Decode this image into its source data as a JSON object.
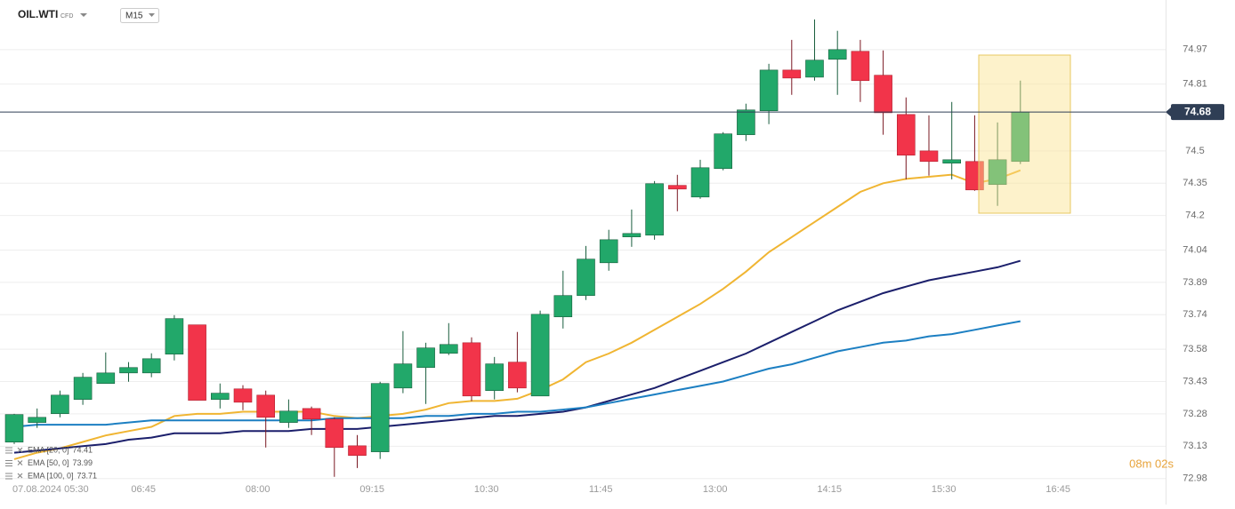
{
  "header": {
    "symbol": "OIL.WTI",
    "instrument_type": "CFD",
    "interval": "M15"
  },
  "countdown": "08m 02s",
  "chart_data": {
    "type": "candlestick",
    "up_color": "#22a86a",
    "down_color": "#f2344a",
    "grid": true,
    "categories": [
      "07.08.2024 05:30",
      null,
      null,
      null,
      null,
      null,
      "06:45",
      null,
      null,
      null,
      null,
      "08:00",
      null,
      null,
      null,
      null,
      "09:15",
      null,
      null,
      null,
      null,
      "10:30",
      null,
      null,
      null,
      null,
      "11:45",
      null,
      null,
      null,
      null,
      "13:00",
      null,
      null,
      null,
      null,
      "14:15",
      null,
      null,
      null,
      null,
      "15:30",
      null,
      null,
      null,
      null,
      "16:45"
    ],
    "open": [
      73.149,
      73.24,
      73.281,
      73.347,
      73.421,
      73.47,
      73.47,
      73.557,
      73.693,
      73.347,
      73.396,
      73.367,
      73.24,
      73.305,
      73.256,
      73.132,
      73.104,
      73.4,
      73.495,
      73.561,
      73.61,
      73.388,
      73.52,
      73.363,
      73.73,
      73.829,
      73.981,
      74.101,
      74.109,
      74.34,
      74.286,
      74.418,
      74.575,
      74.686,
      74.875,
      74.842,
      74.925,
      74.962,
      74.851,
      74.669,
      74.5,
      74.443,
      74.451,
      74.344,
      74.451,
      null,
      null
    ],
    "high": [
      73.28,
      73.305,
      73.388,
      73.47,
      73.565,
      73.52,
      73.561,
      73.738,
      73.693,
      73.421,
      73.413,
      73.388,
      73.347,
      73.314,
      73.264,
      73.182,
      73.429,
      73.664,
      73.61,
      73.701,
      73.635,
      73.544,
      73.66,
      73.759,
      73.944,
      74.059,
      74.134,
      74.228,
      74.36,
      74.389,
      74.459,
      74.587,
      74.719,
      74.904,
      75.015,
      75.11,
      75.057,
      75.015,
      74.966,
      74.748,
      74.665,
      74.727,
      74.665,
      74.632,
      74.826,
      null,
      null
    ],
    "low": [
      73.14,
      73.215,
      73.264,
      73.322,
      73.421,
      73.429,
      73.45,
      73.528,
      73.343,
      73.305,
      73.297,
      73.124,
      73.215,
      73.182,
      72.988,
      73.029,
      73.071,
      73.376,
      73.326,
      73.553,
      73.339,
      73.347,
      73.38,
      73.363,
      73.676,
      73.808,
      73.944,
      74.055,
      74.088,
      74.22,
      74.278,
      74.41,
      74.546,
      74.624,
      74.76,
      74.826,
      74.76,
      74.727,
      74.575,
      74.368,
      74.385,
      74.368,
      74.315,
      74.245,
      74.439,
      null,
      null
    ],
    "close": [
      73.277,
      73.264,
      73.367,
      73.45,
      73.47,
      73.495,
      73.536,
      73.722,
      73.343,
      73.376,
      73.334,
      73.264,
      73.293,
      73.256,
      73.124,
      73.087,
      73.421,
      73.512,
      73.586,
      73.602,
      73.363,
      73.512,
      73.4,
      73.742,
      73.829,
      73.998,
      74.088,
      74.117,
      74.348,
      74.323,
      74.422,
      74.579,
      74.69,
      74.875,
      74.838,
      74.921,
      74.97,
      74.826,
      74.677,
      74.48,
      74.451,
      74.459,
      74.319,
      74.459,
      74.68,
      null,
      null
    ],
    "series": [
      {
        "name": "EMA [20, 0]",
        "color": "#f0b532",
        "values": [
          73.07,
          73.1,
          73.12,
          73.15,
          73.18,
          73.2,
          73.22,
          73.27,
          73.28,
          73.28,
          73.29,
          73.29,
          73.29,
          73.29,
          73.27,
          73.26,
          73.27,
          73.28,
          73.3,
          73.33,
          73.34,
          73.34,
          73.35,
          73.39,
          73.44,
          73.52,
          73.56,
          73.61,
          73.67,
          73.73,
          73.79,
          73.86,
          73.94,
          74.03,
          74.1,
          74.17,
          74.24,
          74.31,
          74.35,
          74.37,
          74.38,
          74.39,
          74.35,
          74.37,
          74.41,
          null,
          null
        ]
      },
      {
        "name": "EMA [50, 0]",
        "color": "#1b1f6b",
        "values": [
          73.1,
          73.11,
          73.12,
          73.13,
          73.14,
          73.16,
          73.17,
          73.19,
          73.19,
          73.19,
          73.2,
          73.2,
          73.2,
          73.21,
          73.21,
          73.21,
          73.22,
          73.23,
          73.24,
          73.25,
          73.26,
          73.27,
          73.27,
          73.28,
          73.29,
          73.31,
          73.34,
          73.37,
          73.4,
          73.44,
          73.48,
          73.52,
          73.56,
          73.61,
          73.66,
          73.71,
          73.76,
          73.8,
          73.84,
          73.87,
          73.9,
          73.92,
          73.94,
          73.96,
          73.99,
          null,
          null
        ]
      },
      {
        "name": "EMA [100, 0]",
        "color": "#1c7fc2",
        "values": [
          73.22,
          73.23,
          73.23,
          73.23,
          73.23,
          73.24,
          73.25,
          73.25,
          73.25,
          73.25,
          73.25,
          73.25,
          73.25,
          73.25,
          73.26,
          73.26,
          73.26,
          73.26,
          73.27,
          73.27,
          73.28,
          73.28,
          73.29,
          73.29,
          73.3,
          73.31,
          73.33,
          73.35,
          73.37,
          73.39,
          73.41,
          73.43,
          73.46,
          73.49,
          73.51,
          73.54,
          73.57,
          73.59,
          73.61,
          73.62,
          73.64,
          73.65,
          73.67,
          73.69,
          73.71,
          null,
          null
        ]
      }
    ],
    "current_price": 74.68,
    "ylim": [
      72.95,
      75.2
    ],
    "yticks": [
      74.97,
      74.81,
      74.5,
      74.35,
      74.2,
      74.04,
      73.89,
      73.74,
      73.58,
      73.43,
      73.28,
      73.13,
      72.98
    ]
  }
}
